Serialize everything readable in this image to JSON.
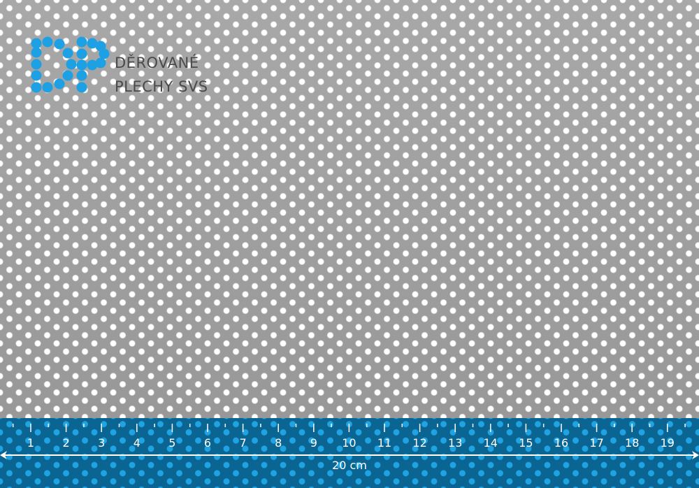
{
  "brand": {
    "line1": "DĚROVANÉ",
    "line2": "PLECHY SVS",
    "logo_letters": "DP",
    "logo_color": "#1ea0e4"
  },
  "ruler": {
    "numbers": [
      "1",
      "2",
      "3",
      "4",
      "5",
      "6",
      "7",
      "8",
      "9",
      "10",
      "11",
      "12",
      "13",
      "14",
      "15",
      "16",
      "17",
      "18",
      "19"
    ],
    "length_label": "20 cm",
    "band_color": "#0b6592"
  },
  "sheet": {
    "color": "#9c9c9c",
    "hole_color": "#ffffff"
  }
}
